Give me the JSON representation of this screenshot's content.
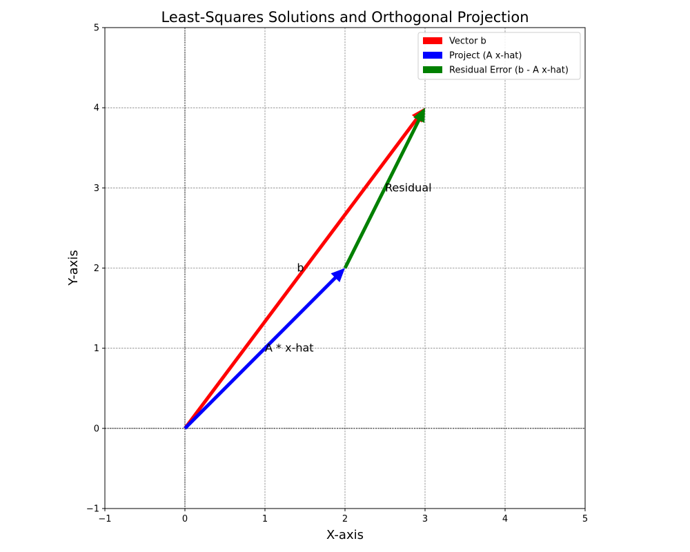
{
  "chart_data": {
    "type": "vector",
    "title": "Least-Squares Solutions and Orthogonal Projection",
    "xlabel": "X-axis",
    "ylabel": "Y-axis",
    "xlim": [
      -1,
      5
    ],
    "ylim": [
      -1,
      5
    ],
    "xticks": [
      -1,
      0,
      1,
      2,
      3,
      4,
      5
    ],
    "yticks": [
      -1,
      0,
      1,
      2,
      3,
      4,
      5
    ],
    "xtick_labels": [
      "−1",
      "0",
      "1",
      "2",
      "3",
      "4",
      "5"
    ],
    "ytick_labels": [
      "−1",
      "0",
      "1",
      "2",
      "3",
      "4",
      "5"
    ],
    "grid": true,
    "reference_lines": {
      "x": 0,
      "y": 0
    },
    "legend_position": "top-right",
    "series": [
      {
        "name": "Vector b",
        "color": "#ff0000",
        "from": [
          0,
          0
        ],
        "to": [
          3,
          4
        ]
      },
      {
        "name": "Project (A x-hat)",
        "color": "#0000ff",
        "from": [
          0,
          0
        ],
        "to": [
          2,
          2
        ]
      },
      {
        "name": "Residual Error (b - A x-hat)",
        "color": "#008000",
        "from": [
          2,
          2
        ],
        "to": [
          3,
          4
        ]
      }
    ],
    "annotations": [
      {
        "text": "b",
        "x": 1.4,
        "y": 2.0
      },
      {
        "text": "A * x-hat",
        "x": 1.0,
        "y": 1.0
      },
      {
        "text": "Residual",
        "x": 2.5,
        "y": 3.0
      }
    ]
  }
}
